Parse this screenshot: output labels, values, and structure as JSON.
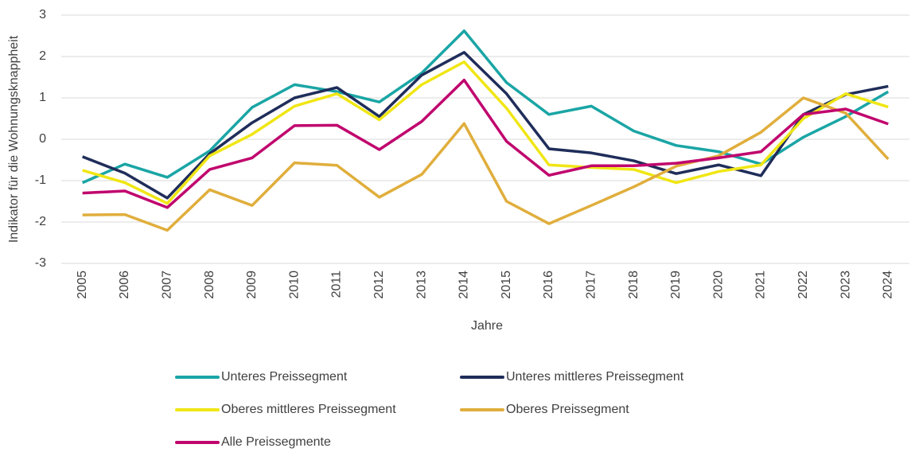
{
  "chart_data": {
    "type": "line",
    "y_label": "Indikator für die Wohnungsknappheit",
    "x_label": "Jahre",
    "categories": [
      "2005",
      "2006",
      "2007",
      "2008",
      "2009",
      "2010",
      "2011",
      "2012",
      "2013",
      "2014",
      "2015",
      "2016",
      "2017",
      "2018",
      "2019",
      "2020",
      "2021",
      "2022",
      "2023",
      "2024"
    ],
    "ylim": [
      -3,
      3
    ],
    "yticks": [
      -3,
      -2,
      -1,
      0,
      1,
      2,
      3
    ],
    "grid": true,
    "legend": "bottom",
    "series": [
      {
        "name": "Unteres Preissegment",
        "color": "#1aa5a5",
        "values": [
          -1.05,
          -0.6,
          -0.92,
          -0.28,
          0.77,
          1.32,
          1.15,
          0.9,
          1.6,
          2.62,
          1.37,
          0.6,
          0.8,
          0.2,
          -0.15,
          -0.3,
          -0.6,
          0.05,
          0.55,
          1.15
        ]
      },
      {
        "name": "Unteres mittleres Preissegment",
        "color": "#1f2d5a",
        "values": [
          -0.42,
          -0.82,
          -1.42,
          -0.35,
          0.4,
          1.0,
          1.25,
          0.55,
          1.55,
          2.1,
          1.1,
          -0.23,
          -0.33,
          -0.52,
          -0.83,
          -0.62,
          -0.88,
          0.6,
          1.08,
          1.28
        ]
      },
      {
        "name": "Oberes mittleres Preissegment",
        "color": "#f0e614",
        "values": [
          -0.75,
          -1.05,
          -1.55,
          -0.4,
          0.12,
          0.8,
          1.1,
          0.47,
          1.32,
          1.87,
          0.75,
          -0.62,
          -0.68,
          -0.73,
          -1.05,
          -0.78,
          -0.62,
          0.5,
          1.1,
          0.78
        ]
      },
      {
        "name": "Oberes Preissegment",
        "color": "#e0ae3c",
        "values": [
          -1.83,
          -1.82,
          -2.2,
          -1.22,
          -1.6,
          -0.57,
          -0.63,
          -1.4,
          -0.85,
          0.38,
          -1.5,
          -2.04,
          -1.6,
          -1.15,
          -0.65,
          -0.4,
          0.17,
          1.0,
          0.63,
          -0.48
        ]
      },
      {
        "name": "Alle Preissegmente",
        "color": "#c0066e",
        "values": [
          -1.3,
          -1.25,
          -1.65,
          -0.73,
          -0.45,
          0.33,
          0.34,
          -0.25,
          0.43,
          1.43,
          -0.05,
          -0.87,
          -0.64,
          -0.64,
          -0.58,
          -0.45,
          -0.3,
          0.6,
          0.73,
          0.37
        ]
      }
    ]
  }
}
